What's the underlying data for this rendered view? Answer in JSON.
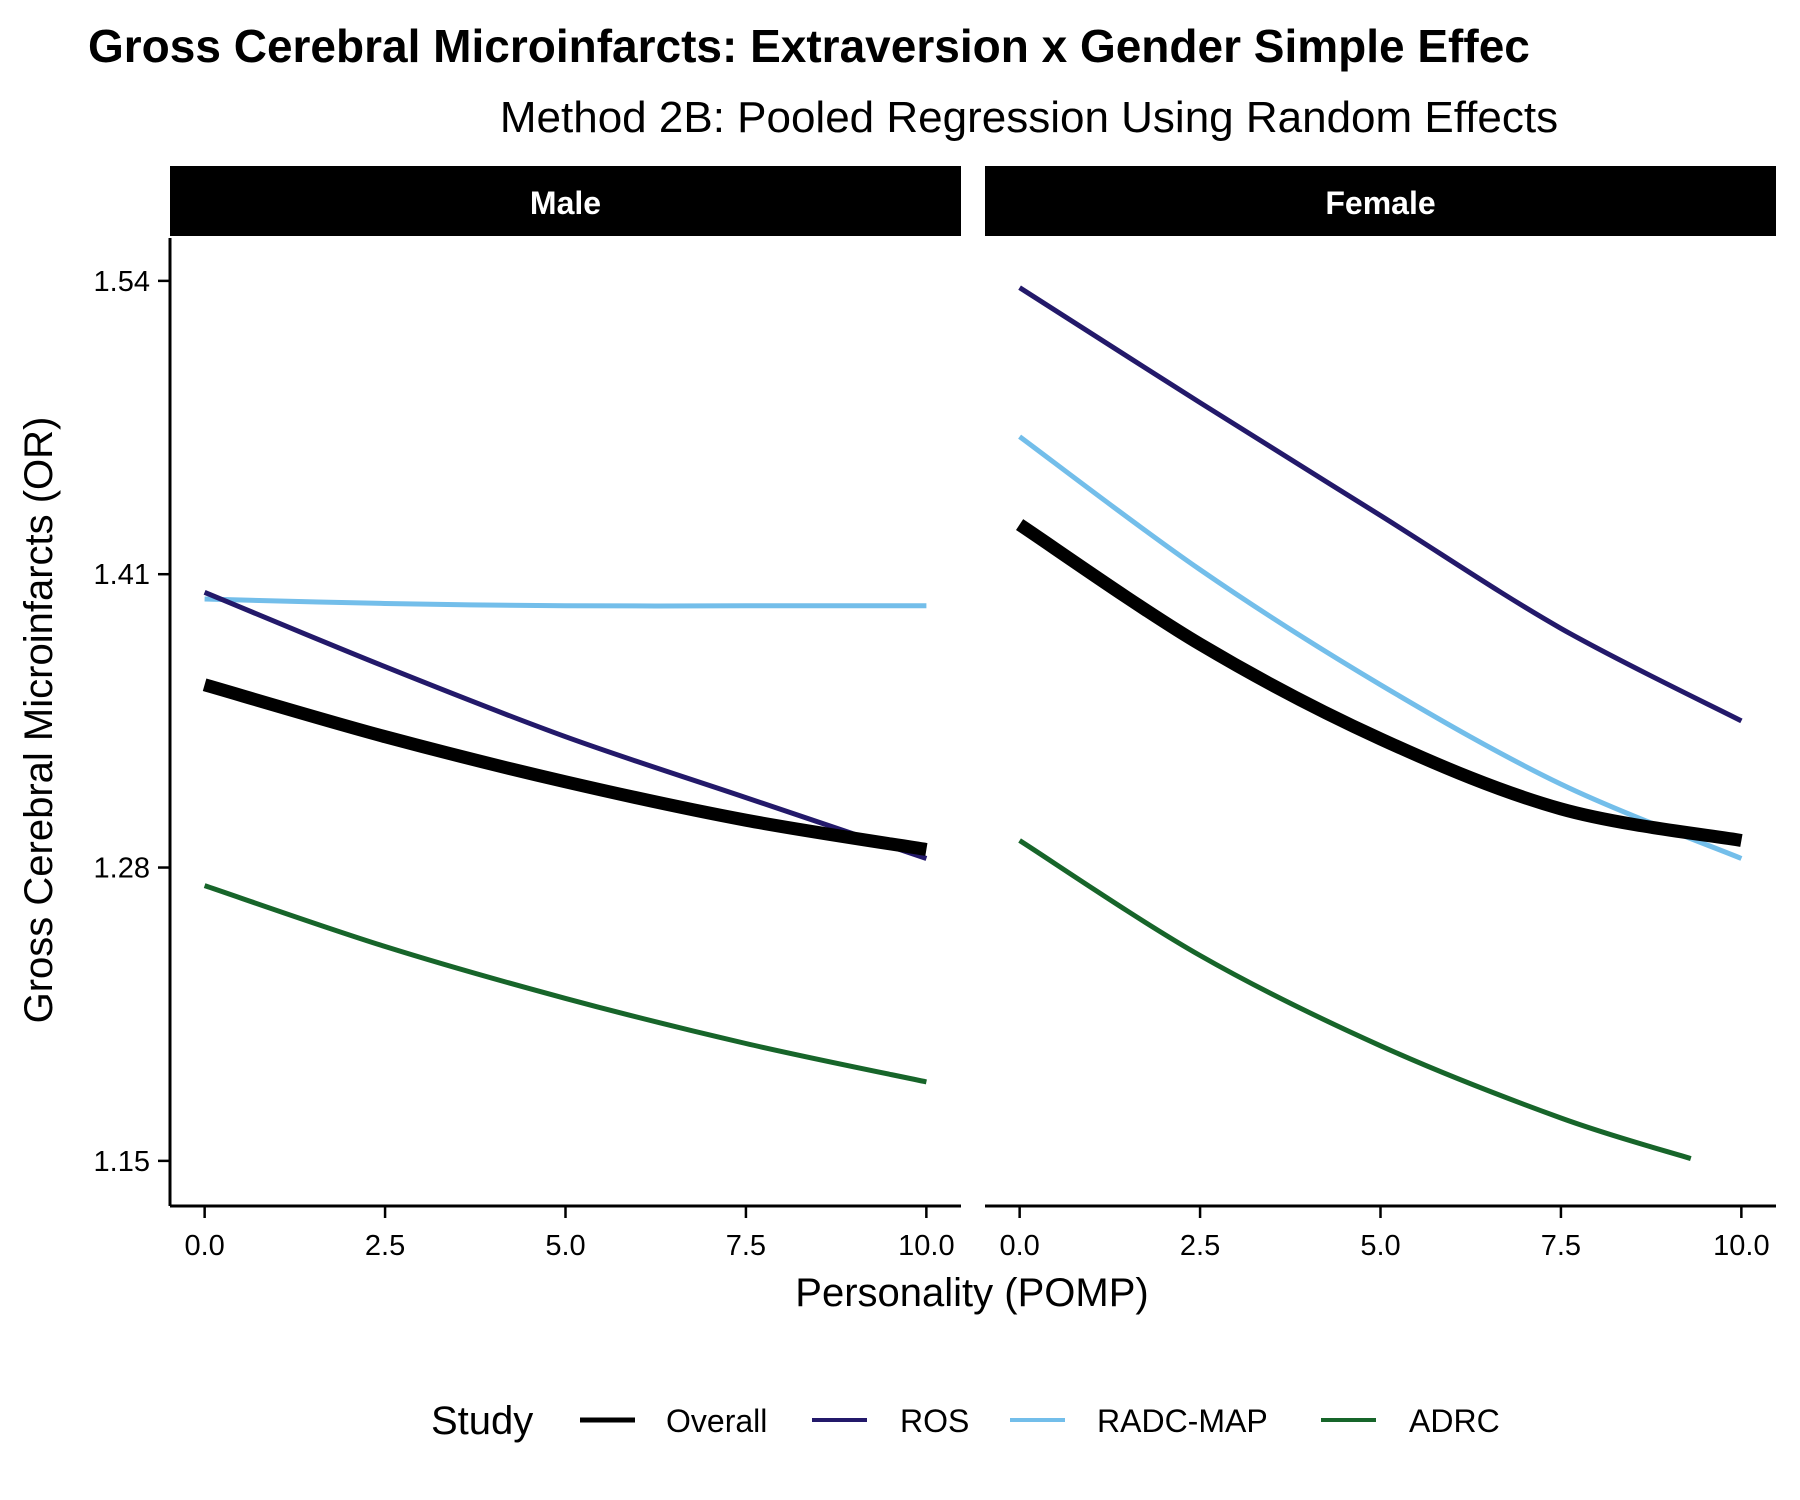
{
  "chart_data": {
    "type": "line",
    "title": "Gross Cerebral Microinfarcts: Extraversion x Gender Simple Effec",
    "subtitle": "Method 2B: Pooled Regression Using Random Effects",
    "xlabel": "Personality (POMP)",
    "ylabel": "Gross Cerebral Microinfarcts (OR)",
    "x_ticks": [
      "0.0",
      "2.5",
      "5.0",
      "7.5",
      "10.0"
    ],
    "x_tick_values": [
      0,
      2.5,
      5,
      7.5,
      10
    ],
    "y_ticks": [
      "1.15",
      "1.28",
      "1.41",
      "1.54"
    ],
    "y_tick_values": [
      1.15,
      1.28,
      1.41,
      1.54
    ],
    "xlim": [
      -0.48,
      10.48
    ],
    "ylim": [
      1.13,
      1.559
    ],
    "grid": false,
    "legend_position": "bottom",
    "legend": {
      "title": "Study",
      "entries": [
        "Overall",
        "ROS",
        "RADC-MAP",
        "ADRC"
      ]
    },
    "series_colors": {
      "Overall": "#000000",
      "ROS": "#23196A",
      "RADC-MAP": "#73BEEA",
      "ADRC": "#17652A"
    },
    "panels": [
      {
        "name": "Male",
        "series": [
          {
            "name": "RADC-MAP",
            "x": [
              0,
              2.5,
              5,
              7.5,
              10
            ],
            "y": [
              1.399,
              1.397,
              1.396,
              1.396,
              1.396
            ]
          },
          {
            "name": "ROS",
            "x": [
              0,
              2.5,
              5,
              7.5,
              10
            ],
            "y": [
              1.402,
              1.369,
              1.338,
              1.311,
              1.284
            ]
          },
          {
            "name": "Overall",
            "x": [
              0,
              2.5,
              5,
              7.5,
              10
            ],
            "y": [
              1.361,
              1.338,
              1.318,
              1.301,
              1.288
            ]
          },
          {
            "name": "ADRC",
            "x": [
              0,
              2.5,
              5,
              7.5,
              10
            ],
            "y": [
              1.272,
              1.245,
              1.222,
              1.202,
              1.185
            ]
          }
        ]
      },
      {
        "name": "Female",
        "series": [
          {
            "name": "ROS",
            "x": [
              0,
              2.5,
              5,
              7.5,
              10
            ],
            "y": [
              1.537,
              1.486,
              1.436,
              1.386,
              1.345
            ]
          },
          {
            "name": "RADC-MAP",
            "x": [
              0,
              2.5,
              5,
              7.5,
              10
            ],
            "y": [
              1.471,
              1.412,
              1.361,
              1.317,
              1.284
            ]
          },
          {
            "name": "Overall",
            "x": [
              0,
              2.5,
              5,
              7.5,
              10
            ],
            "y": [
              1.432,
              1.379,
              1.337,
              1.306,
              1.292
            ]
          },
          {
            "name": "ADRC",
            "x": [
              0,
              2.5,
              5,
              7.5,
              9.3
            ],
            "y": [
              1.292,
              1.241,
              1.201,
              1.169,
              1.151
            ]
          }
        ]
      }
    ]
  }
}
